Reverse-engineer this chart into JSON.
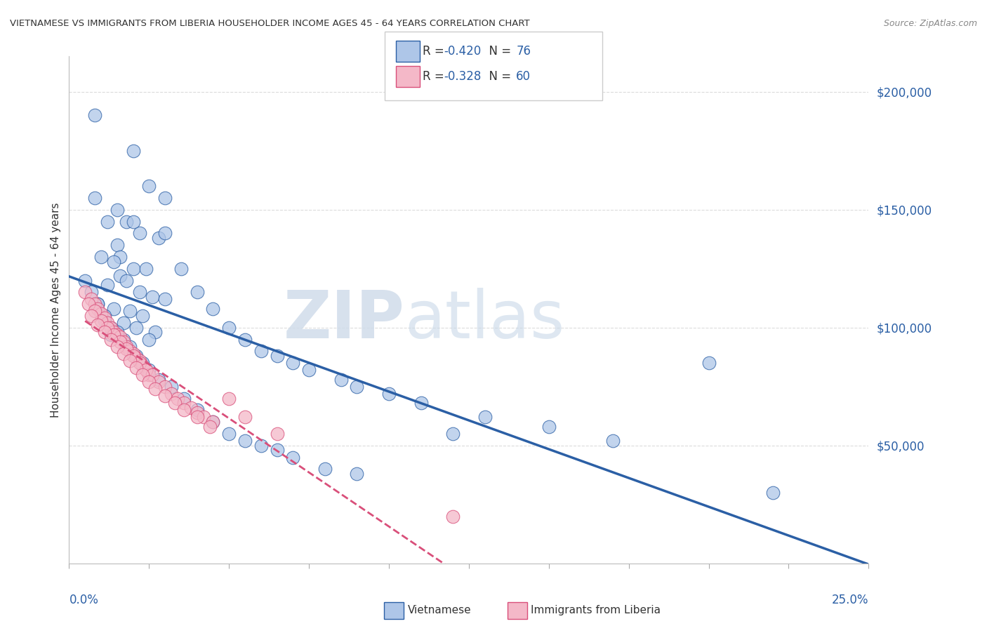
{
  "title": "VIETNAMESE VS IMMIGRANTS FROM LIBERIA HOUSEHOLDER INCOME AGES 45 - 64 YEARS CORRELATION CHART",
  "source": "Source: ZipAtlas.com",
  "ylabel": "Householder Income Ages 45 - 64 years",
  "r_vietnamese": -0.42,
  "n_vietnamese": 76,
  "r_liberia": -0.328,
  "n_liberia": 60,
  "blue_color": "#aec6e8",
  "pink_color": "#f4b8c8",
  "blue_line_color": "#2b5fa5",
  "pink_line_color": "#d94f7a",
  "xmin": 0.0,
  "xmax": 0.25,
  "ymin": 0,
  "ymax": 215000,
  "vietnamese_x": [
    0.008,
    0.02,
    0.025,
    0.03,
    0.012,
    0.018,
    0.022,
    0.028,
    0.015,
    0.01,
    0.016,
    0.014,
    0.02,
    0.024,
    0.016,
    0.018,
    0.012,
    0.022,
    0.026,
    0.03,
    0.009,
    0.014,
    0.019,
    0.023,
    0.011,
    0.017,
    0.021,
    0.027,
    0.013,
    0.025,
    0.008,
    0.015,
    0.02,
    0.03,
    0.035,
    0.04,
    0.045,
    0.05,
    0.055,
    0.06,
    0.065,
    0.07,
    0.075,
    0.085,
    0.09,
    0.1,
    0.11,
    0.13,
    0.15,
    0.17,
    0.005,
    0.007,
    0.009,
    0.011,
    0.013,
    0.015,
    0.017,
    0.019,
    0.021,
    0.023,
    0.025,
    0.028,
    0.032,
    0.036,
    0.04,
    0.045,
    0.05,
    0.055,
    0.06,
    0.065,
    0.07,
    0.08,
    0.09,
    0.12,
    0.2,
    0.22
  ],
  "vietnamese_y": [
    190000,
    175000,
    160000,
    155000,
    145000,
    145000,
    140000,
    138000,
    135000,
    130000,
    130000,
    128000,
    125000,
    125000,
    122000,
    120000,
    118000,
    115000,
    113000,
    112000,
    110000,
    108000,
    107000,
    105000,
    103000,
    102000,
    100000,
    98000,
    97000,
    95000,
    155000,
    150000,
    145000,
    140000,
    125000,
    115000,
    108000,
    100000,
    95000,
    90000,
    88000,
    85000,
    82000,
    78000,
    75000,
    72000,
    68000,
    62000,
    58000,
    52000,
    120000,
    115000,
    110000,
    105000,
    100000,
    98000,
    95000,
    92000,
    88000,
    85000,
    82000,
    78000,
    75000,
    70000,
    65000,
    60000,
    55000,
    52000,
    50000,
    48000,
    45000,
    40000,
    38000,
    55000,
    85000,
    30000
  ],
  "liberia_x": [
    0.005,
    0.007,
    0.008,
    0.009,
    0.01,
    0.011,
    0.012,
    0.013,
    0.014,
    0.015,
    0.016,
    0.017,
    0.018,
    0.019,
    0.02,
    0.021,
    0.022,
    0.023,
    0.024,
    0.025,
    0.006,
    0.008,
    0.01,
    0.012,
    0.014,
    0.016,
    0.018,
    0.02,
    0.022,
    0.024,
    0.026,
    0.028,
    0.03,
    0.032,
    0.034,
    0.036,
    0.038,
    0.04,
    0.042,
    0.045,
    0.007,
    0.009,
    0.011,
    0.013,
    0.015,
    0.017,
    0.019,
    0.021,
    0.023,
    0.025,
    0.027,
    0.03,
    0.033,
    0.036,
    0.04,
    0.044,
    0.05,
    0.055,
    0.065,
    0.12
  ],
  "liberia_y": [
    115000,
    112000,
    110000,
    108000,
    106000,
    104000,
    102000,
    100000,
    98000,
    97000,
    96000,
    94000,
    92000,
    90000,
    89000,
    87000,
    86000,
    84000,
    82000,
    80000,
    110000,
    107000,
    103000,
    100000,
    97000,
    94000,
    91000,
    88000,
    85000,
    82000,
    80000,
    77000,
    75000,
    72000,
    70000,
    68000,
    66000,
    64000,
    62000,
    60000,
    105000,
    101000,
    98000,
    95000,
    92000,
    89000,
    86000,
    83000,
    80000,
    77000,
    74000,
    71000,
    68000,
    65000,
    62000,
    58000,
    70000,
    62000,
    55000,
    20000
  ]
}
